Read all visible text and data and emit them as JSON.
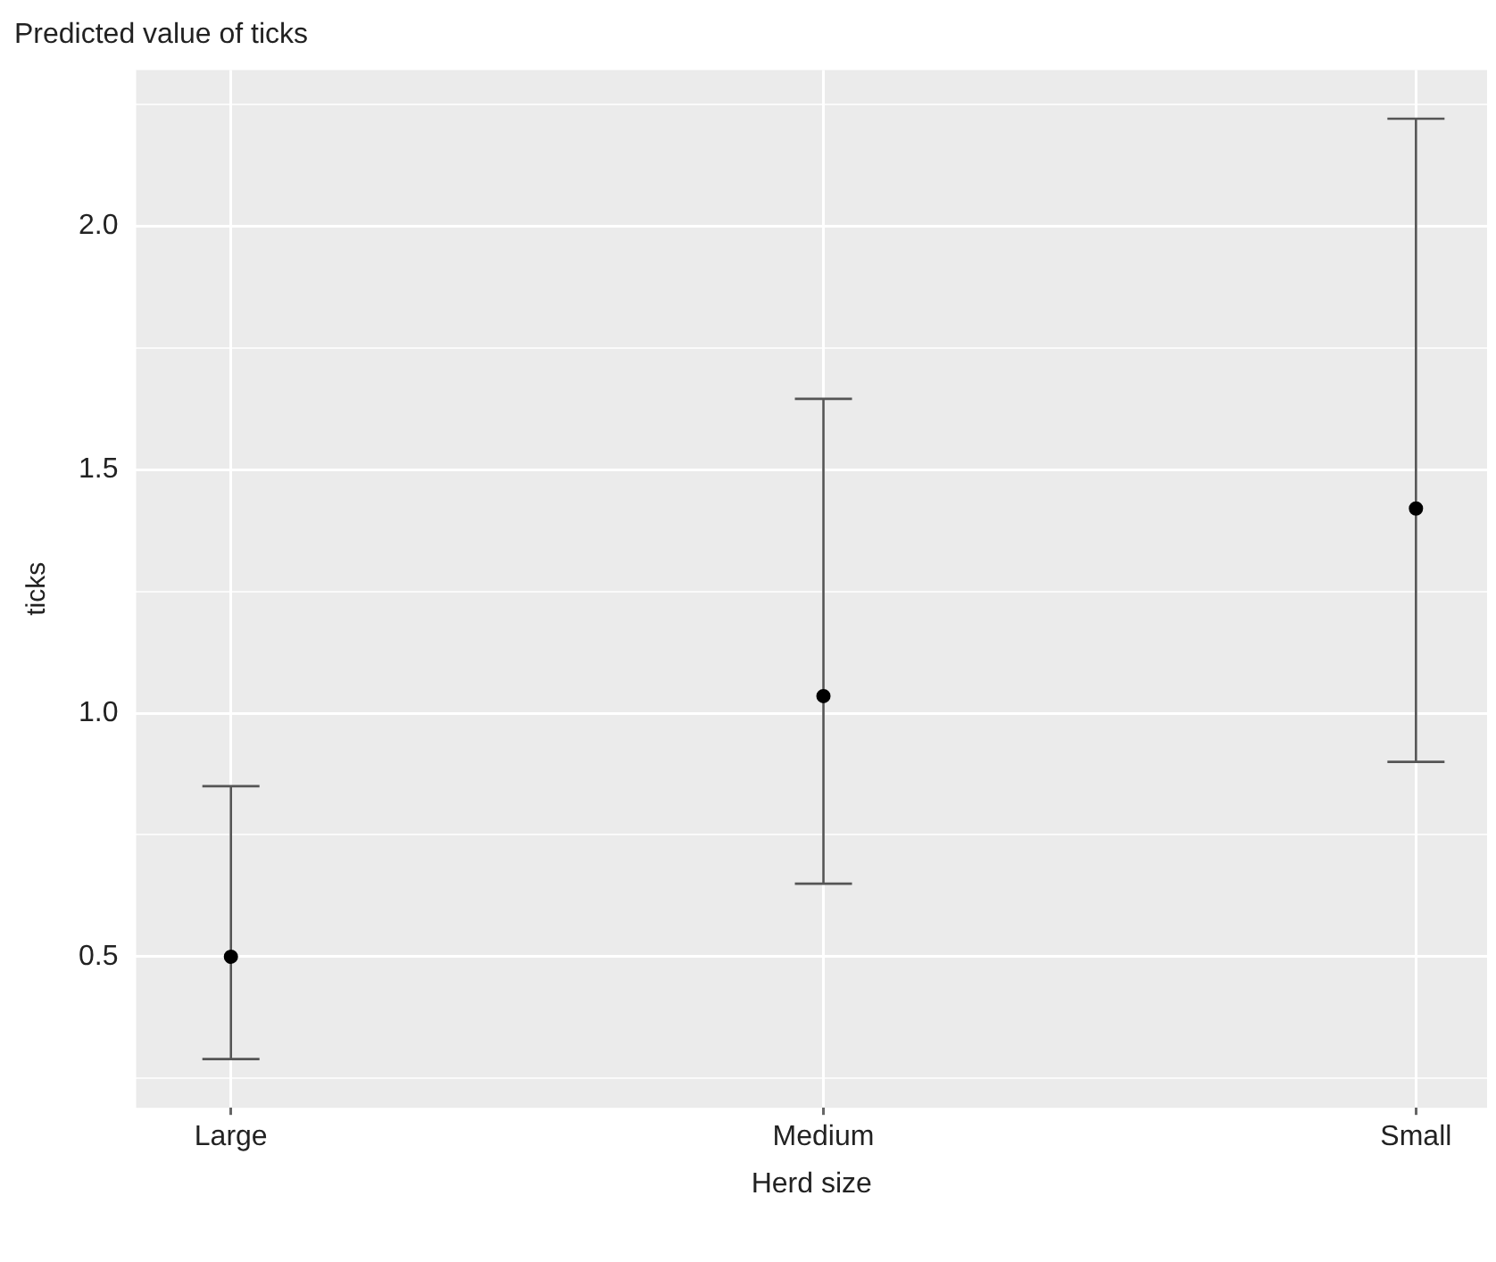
{
  "chart_data": {
    "type": "scatter",
    "title": "Predicted value of ticks",
    "xlabel": "Herd size",
    "ylabel": "ticks",
    "categories": [
      "Large",
      "Medium",
      "Small"
    ],
    "values": [
      0.5,
      1.035,
      1.42
    ],
    "errors": [
      [
        0.29,
        0.85
      ],
      [
        0.65,
        1.645
      ],
      [
        0.9,
        2.22
      ]
    ],
    "color": "#000000",
    "marker": "circle",
    "ylim": [
      0.19,
      2.32
    ],
    "yticks": [
      {
        "value": 0.25,
        "label": null
      },
      0.5,
      {
        "value": 0.75,
        "label": null
      },
      {
        "value": 1,
        "label": "1.0"
      },
      {
        "value": 1.25,
        "label": null
      },
      1.5,
      {
        "value": 1.75,
        "label": null
      },
      {
        "value": 2,
        "label": "2.0"
      },
      {
        "value": 2.25,
        "label": null
      }
    ],
    "grid": true,
    "legend": false
  }
}
